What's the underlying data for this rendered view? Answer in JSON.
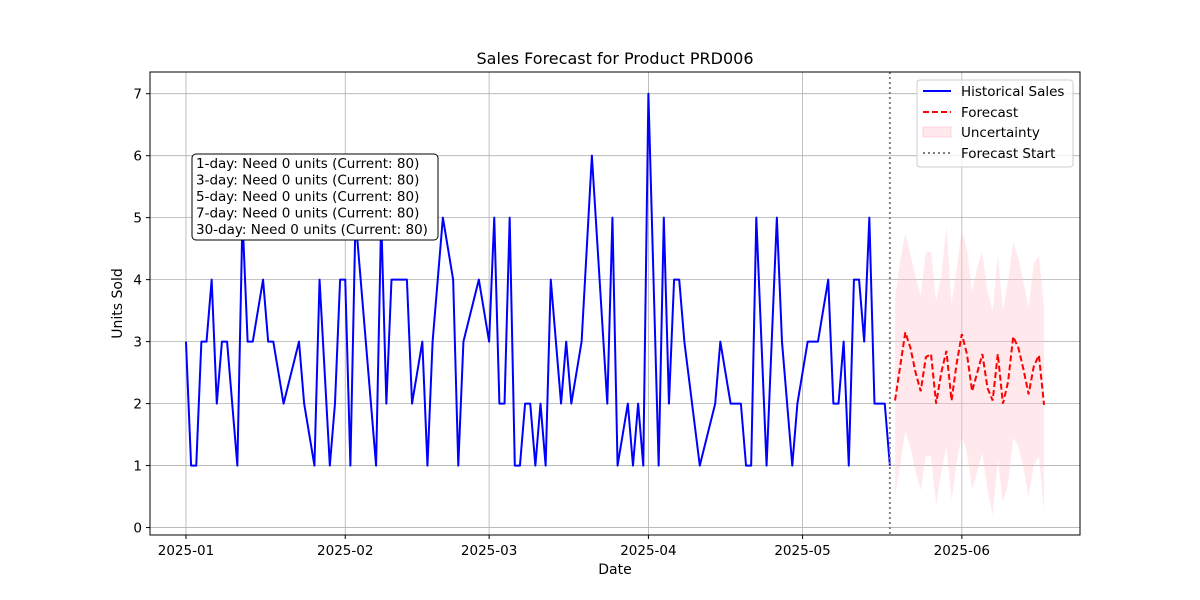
{
  "chart_data": {
    "type": "line",
    "title": "Sales Forecast for Product PRD006",
    "xlabel": "Date",
    "ylabel": "Units Sold",
    "x_ticks": [
      "2025-01",
      "2025-02",
      "2025-03",
      "2025-04",
      "2025-05",
      "2025-06"
    ],
    "y_ticks": [
      "0",
      "1",
      "2",
      "3",
      "4",
      "5",
      "6",
      "7"
    ],
    "ylim": [
      -0.12,
      7.35
    ],
    "xlim": [
      "2024-12-25",
      "2025-06-24"
    ],
    "grid": true,
    "legend_position": "top-right",
    "series": [
      {
        "name": "Historical Sales",
        "style": "solid",
        "color": "#0000ff",
        "points": [
          [
            "2025-01-01",
            3
          ],
          [
            "2025-01-02",
            1
          ],
          [
            "2025-01-03",
            1
          ],
          [
            "2025-01-04",
            3
          ],
          [
            "2025-01-05",
            3
          ],
          [
            "2025-01-06",
            4
          ],
          [
            "2025-01-07",
            2
          ],
          [
            "2025-01-08",
            3
          ],
          [
            "2025-01-09",
            3
          ],
          [
            "2025-01-11",
            1
          ],
          [
            "2025-01-12",
            5
          ],
          [
            "2025-01-13",
            3
          ],
          [
            "2025-01-14",
            3
          ],
          [
            "2025-01-16",
            4
          ],
          [
            "2025-01-17",
            3
          ],
          [
            "2025-01-18",
            3
          ],
          [
            "2025-01-20",
            2
          ],
          [
            "2025-01-23",
            3
          ],
          [
            "2025-01-24",
            2
          ],
          [
            "2025-01-26",
            1
          ],
          [
            "2025-01-27",
            4
          ],
          [
            "2025-01-29",
            1
          ],
          [
            "2025-01-30",
            2
          ],
          [
            "2025-01-31",
            4
          ],
          [
            "2025-02-01",
            4
          ],
          [
            "2025-02-02",
            1
          ],
          [
            "2025-02-03",
            5
          ],
          [
            "2025-02-07",
            1
          ],
          [
            "2025-02-08",
            5
          ],
          [
            "2025-02-09",
            2
          ],
          [
            "2025-02-10",
            4
          ],
          [
            "2025-02-13",
            4
          ],
          [
            "2025-02-14",
            2
          ],
          [
            "2025-02-16",
            3
          ],
          [
            "2025-02-17",
            1
          ],
          [
            "2025-02-18",
            3
          ],
          [
            "2025-02-20",
            5
          ],
          [
            "2025-02-22",
            4
          ],
          [
            "2025-02-23",
            1
          ],
          [
            "2025-02-24",
            3
          ],
          [
            "2025-02-27",
            4
          ],
          [
            "2025-03-01",
            3
          ],
          [
            "2025-03-02",
            5
          ],
          [
            "2025-03-03",
            2
          ],
          [
            "2025-03-04",
            2
          ],
          [
            "2025-03-05",
            5
          ],
          [
            "2025-03-06",
            1
          ],
          [
            "2025-03-07",
            1
          ],
          [
            "2025-03-08",
            2
          ],
          [
            "2025-03-09",
            2
          ],
          [
            "2025-03-10",
            1
          ],
          [
            "2025-03-11",
            2
          ],
          [
            "2025-03-12",
            1
          ],
          [
            "2025-03-13",
            4
          ],
          [
            "2025-03-15",
            2
          ],
          [
            "2025-03-16",
            3
          ],
          [
            "2025-03-17",
            2
          ],
          [
            "2025-03-19",
            3
          ],
          [
            "2025-03-21",
            6
          ],
          [
            "2025-03-24",
            2
          ],
          [
            "2025-03-25",
            5
          ],
          [
            "2025-03-26",
            1
          ],
          [
            "2025-03-28",
            2
          ],
          [
            "2025-03-29",
            1
          ],
          [
            "2025-03-30",
            2
          ],
          [
            "2025-03-31",
            1
          ],
          [
            "2025-04-01",
            7
          ],
          [
            "2025-04-03",
            1
          ],
          [
            "2025-04-04",
            5
          ],
          [
            "2025-04-05",
            2
          ],
          [
            "2025-04-06",
            4
          ],
          [
            "2025-04-07",
            4
          ],
          [
            "2025-04-08",
            3
          ],
          [
            "2025-04-11",
            1
          ],
          [
            "2025-04-14",
            2
          ],
          [
            "2025-04-15",
            3
          ],
          [
            "2025-04-17",
            2
          ],
          [
            "2025-04-19",
            2
          ],
          [
            "2025-04-20",
            1
          ],
          [
            "2025-04-21",
            1
          ],
          [
            "2025-04-22",
            5
          ],
          [
            "2025-04-24",
            1
          ],
          [
            "2025-04-26",
            5
          ],
          [
            "2025-04-27",
            3
          ],
          [
            "2025-04-29",
            1
          ],
          [
            "2025-04-30",
            2
          ],
          [
            "2025-05-02",
            3
          ],
          [
            "2025-05-04",
            3
          ],
          [
            "2025-05-06",
            4
          ],
          [
            "2025-05-07",
            2
          ],
          [
            "2025-05-08",
            2
          ],
          [
            "2025-05-09",
            3
          ],
          [
            "2025-05-10",
            1
          ],
          [
            "2025-05-11",
            4
          ],
          [
            "2025-05-12",
            4
          ],
          [
            "2025-05-13",
            3
          ],
          [
            "2025-05-14",
            5
          ],
          [
            "2025-05-15",
            2
          ],
          [
            "2025-05-17",
            2
          ],
          [
            "2025-05-18",
            1
          ]
        ]
      },
      {
        "name": "Forecast",
        "style": "dashed",
        "color": "#ff0000",
        "start": "2025-05-19",
        "values": [
          2.05,
          2.6,
          3.15,
          2.9,
          2.5,
          2.2,
          2.75,
          2.8,
          2.0,
          2.5,
          2.85,
          2.05,
          2.65,
          3.12,
          2.8,
          2.2,
          2.5,
          2.8,
          2.25,
          2.05,
          2.8,
          2.0,
          2.35,
          3.08,
          2.9,
          2.55,
          2.15,
          2.6,
          2.78,
          1.98
        ]
      },
      {
        "name": "Uncertainty",
        "style": "band",
        "color": "#ffc0cb",
        "start": "2025-05-19",
        "upper": [
          3.7,
          4.3,
          4.75,
          4.4,
          4.05,
          3.75,
          4.45,
          4.45,
          3.65,
          4.05,
          4.85,
          3.6,
          4.2,
          4.8,
          4.5,
          3.8,
          4.2,
          4.45,
          3.8,
          3.5,
          4.4,
          3.5,
          4.0,
          4.6,
          4.35,
          3.95,
          3.55,
          4.25,
          4.4,
          3.55
        ],
        "lower": [
          0.5,
          1.0,
          1.55,
          1.3,
          0.9,
          0.6,
          1.15,
          1.15,
          0.35,
          0.9,
          1.3,
          0.45,
          1.05,
          1.5,
          1.2,
          0.6,
          0.9,
          1.2,
          0.6,
          0.2,
          1.1,
          0.4,
          0.7,
          1.45,
          1.3,
          0.95,
          0.5,
          1.0,
          1.15,
          0.25
        ]
      }
    ],
    "vline": {
      "name": "Forecast Start",
      "x": "2025-05-18",
      "style": "dotted",
      "color": "#808080"
    },
    "annotation": [
      "1-day: Need 0 units (Current: 80)",
      "3-day: Need 0 units (Current: 80)",
      "5-day: Need 0 units (Current: 80)",
      "7-day: Need 0 units (Current: 80)",
      "30-day: Need 0 units (Current: 80)"
    ],
    "legend": [
      "Historical Sales",
      "Forecast",
      "Uncertainty",
      "Forecast Start"
    ]
  }
}
